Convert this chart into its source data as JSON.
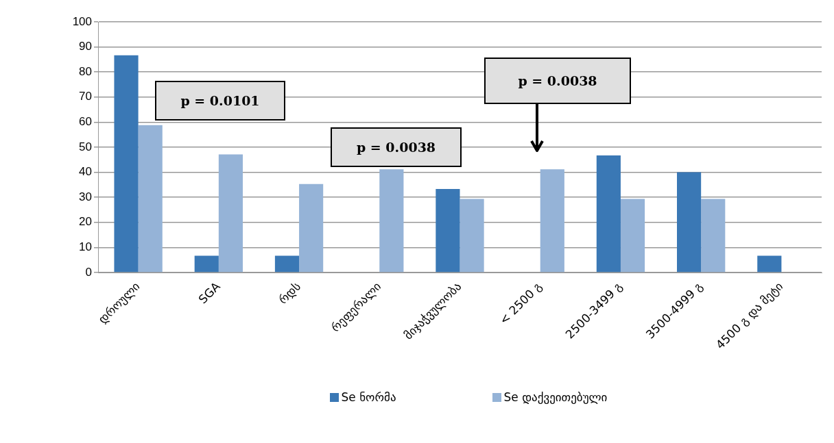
{
  "chart_data": {
    "type": "bar",
    "categories": [
      "დროული",
      "SGA",
      "რდს",
      "რეფერალი",
      "მიჯაჭვულობა",
      "< 2500 გ",
      "2500-3499 გ",
      "3500-4999 გ",
      "4500 გ და მეტი"
    ],
    "series": [
      {
        "name": "Se ნორმა",
        "color": "#3a78b5",
        "values": [
          86.7,
          6.7,
          6.7,
          0,
          33.3,
          0,
          46.7,
          40,
          6.7
        ]
      },
      {
        "name": "Se დაქვეითებული",
        "color": "#95b3d7",
        "values": [
          58.8,
          47.1,
          35.3,
          41.2,
          29.4,
          41.2,
          29.4,
          29.4,
          0
        ]
      }
    ],
    "ylim": [
      0,
      100
    ],
    "yticks": [
      0,
      10,
      20,
      30,
      40,
      50,
      60,
      70,
      80,
      90,
      100
    ],
    "grid": "y",
    "legend": "bottom",
    "annotations": [
      "p = 0.0101",
      "p = 0.0038",
      "p = 0.0038"
    ]
  }
}
